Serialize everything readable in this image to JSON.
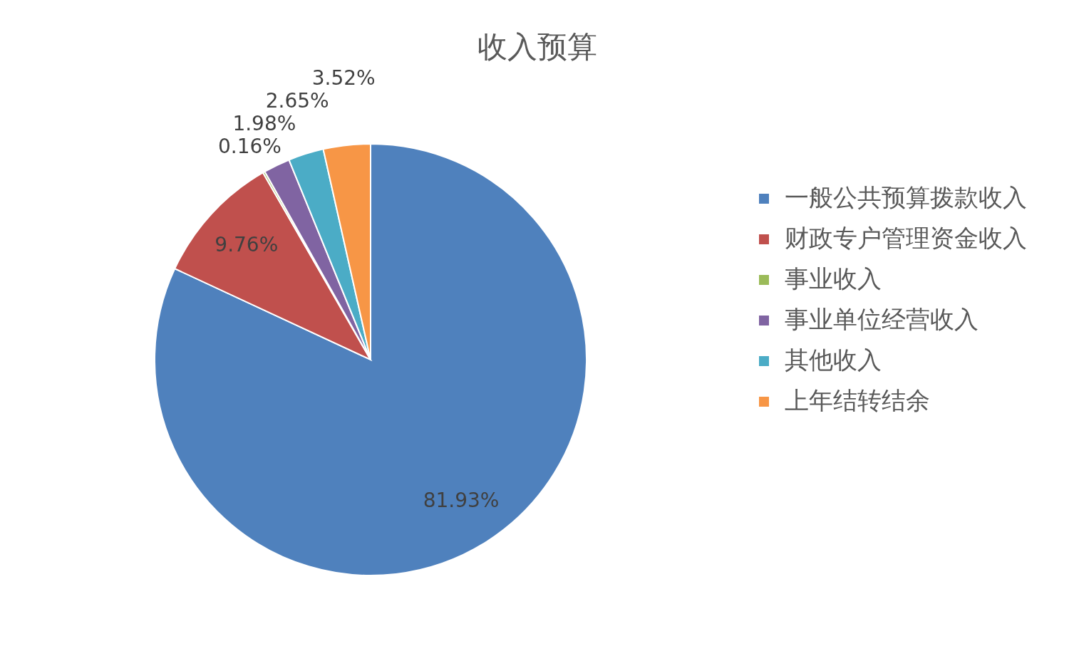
{
  "chart_data": {
    "type": "pie",
    "title": "收入预算",
    "categories": [
      "一般公共预算拨款收入",
      "财政专户管理资金收入",
      "事业收入",
      "事业单位经营收入",
      "其他收入",
      "上年结转结余"
    ],
    "values": [
      81.93,
      9.76,
      0.16,
      1.98,
      2.65,
      3.52
    ],
    "colors": [
      "#4f81bd",
      "#c0504d",
      "#9bbb59",
      "#8064a2",
      "#4bacc6",
      "#f79646"
    ],
    "value_labels": [
      "81.93%",
      "9.76%",
      "0.16%",
      "1.98%",
      "2.65%",
      "3.52%"
    ],
    "legend": "right"
  }
}
